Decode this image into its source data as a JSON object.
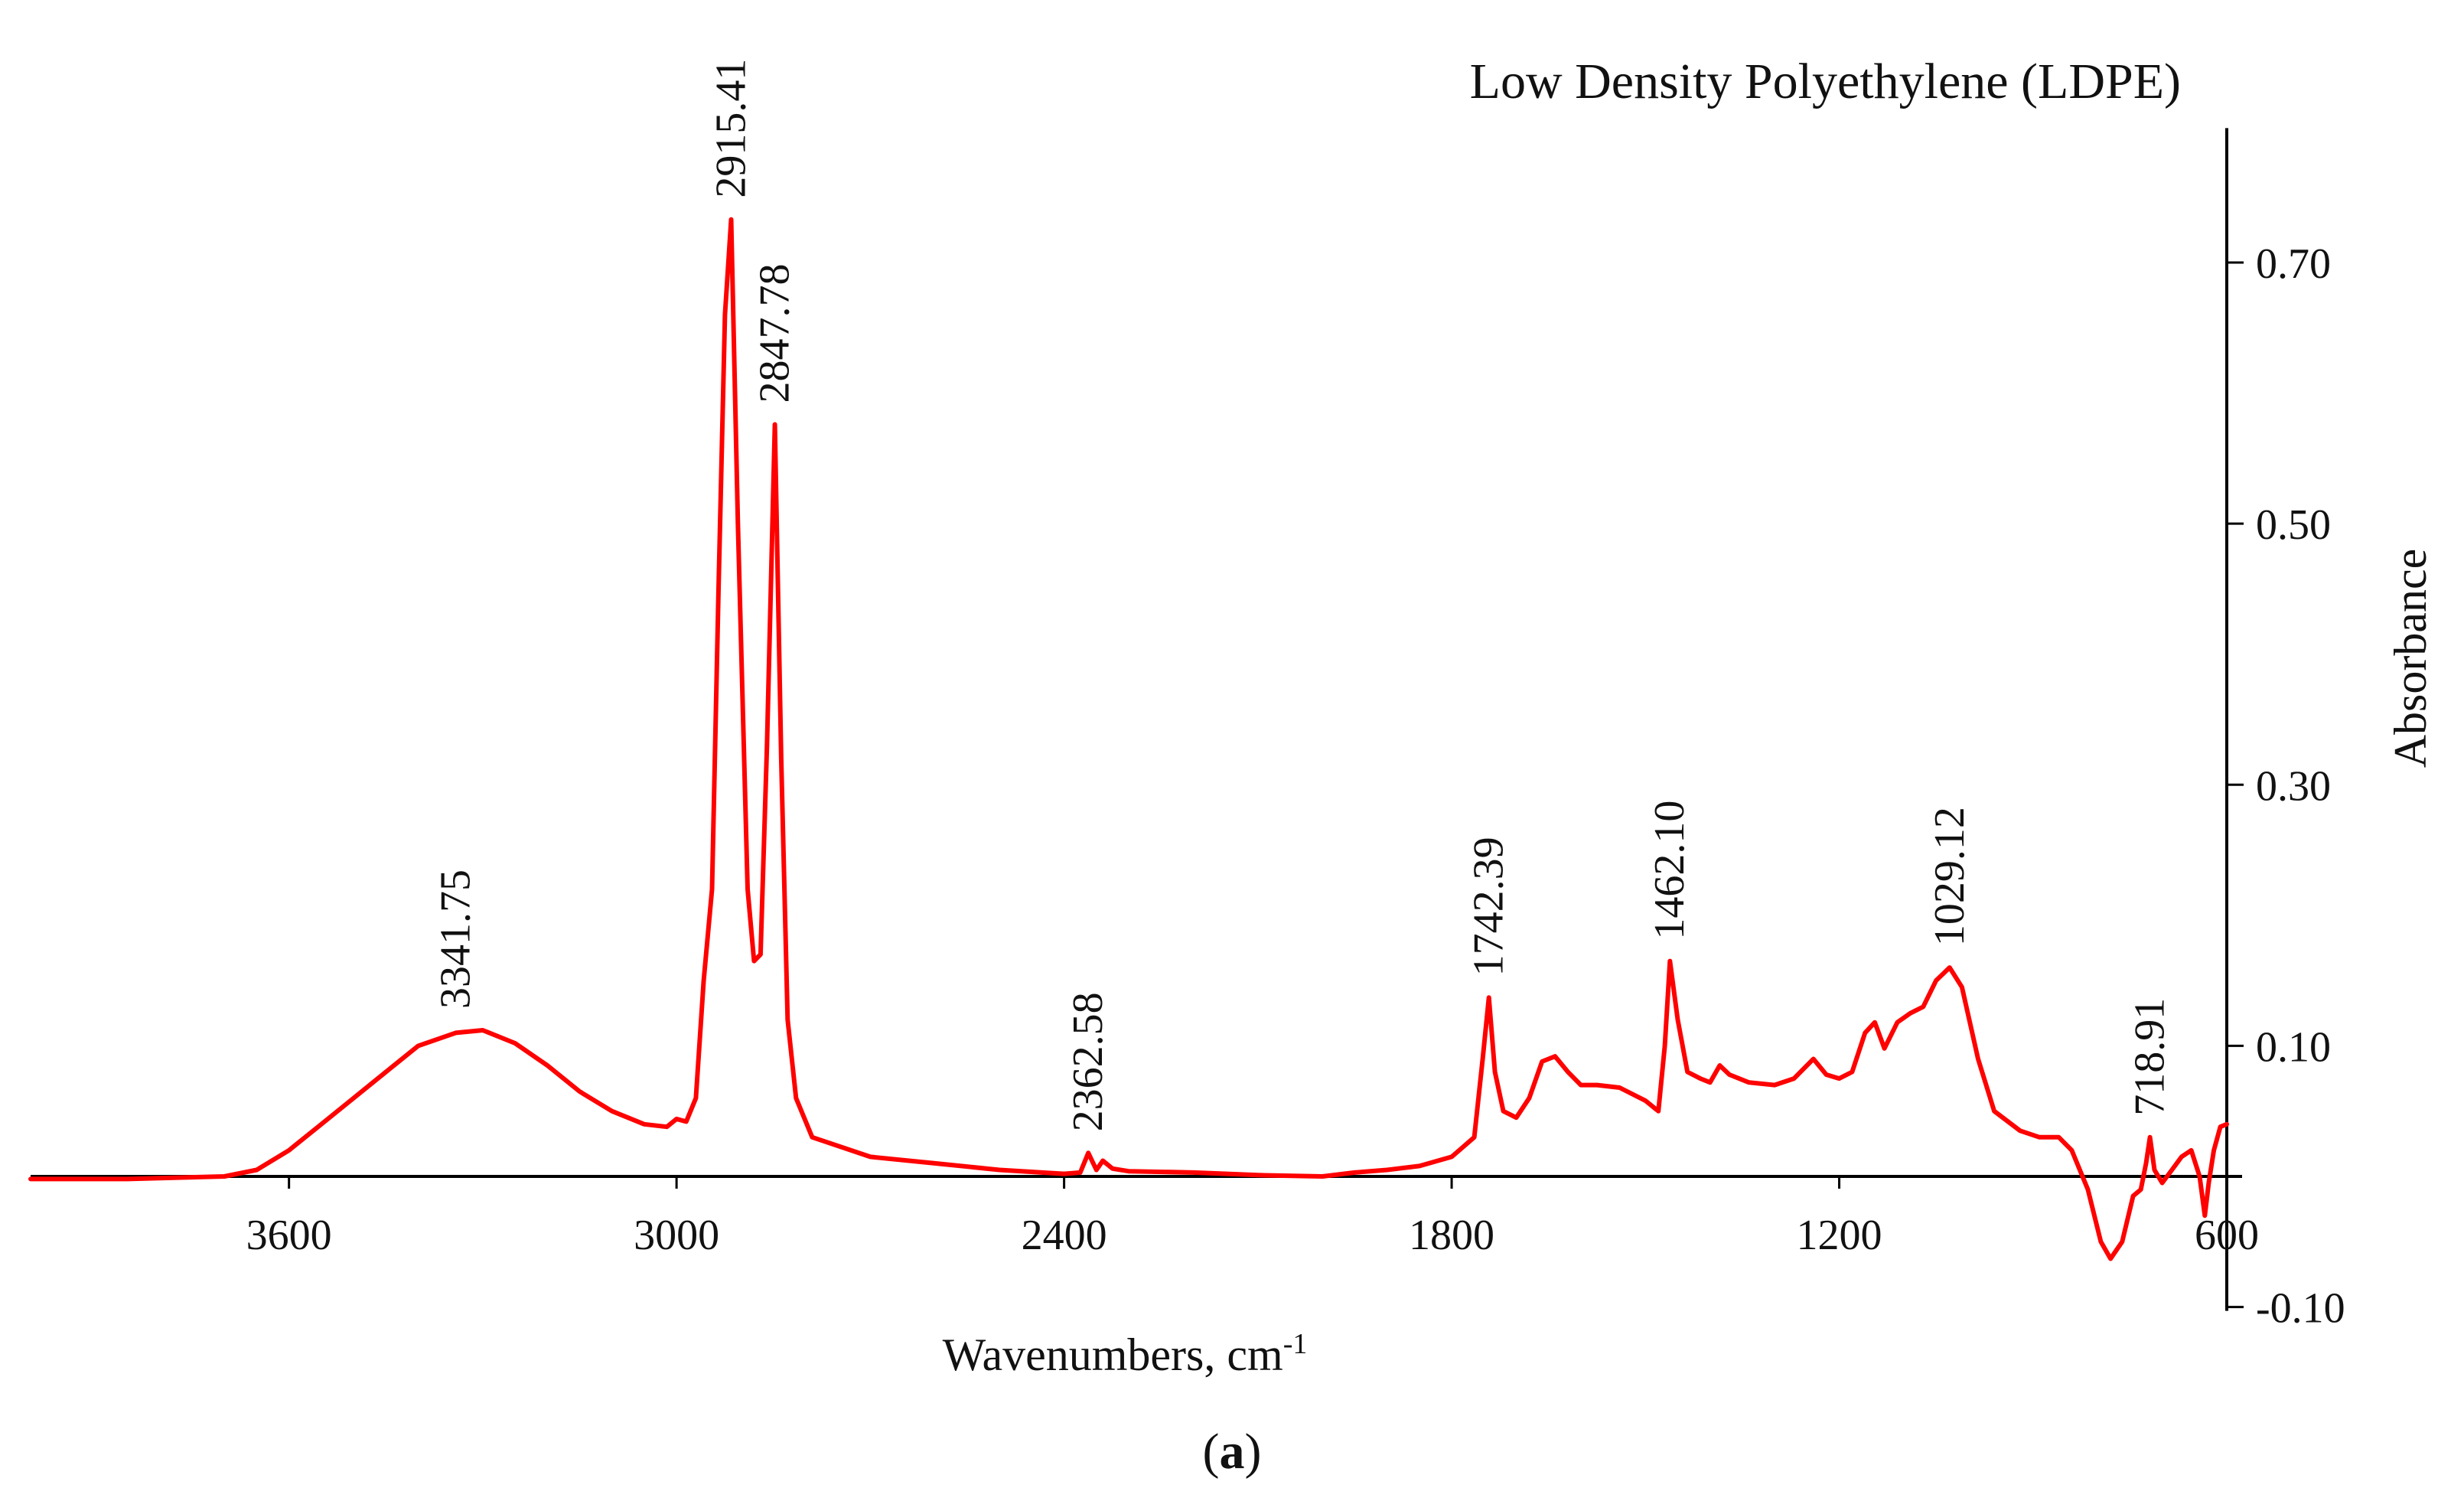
{
  "chart_data": {
    "type": "line",
    "title": "Low Density Polyethylene (LDPE)",
    "xlabel": "Wavenumbers, cm",
    "xlabel_superscript": "-1",
    "ylabel": "Absorbance",
    "caption": "(a)",
    "caption_letter": "a",
    "xlim": [
      4000,
      600
    ],
    "ylim": [
      -0.1,
      0.8
    ],
    "grid": false,
    "x_ticks": [
      3600,
      3000,
      2400,
      1800,
      1200,
      600
    ],
    "x_tick_labels": [
      "3600",
      "3000",
      "2400",
      "1800",
      "1200",
      "600"
    ],
    "y_ticks": [
      0.7,
      0.5,
      0.3,
      0.1,
      -0.1
    ],
    "y_tick_labels": [
      "0.70",
      "0.50",
      "0.30",
      "0.10",
      "-0.10"
    ],
    "series": [
      {
        "name": "LDPE",
        "color": "#ff0000",
        "points": [
          [
            4000,
            -0.002
          ],
          [
            3850,
            -0.002
          ],
          [
            3700,
            0.0
          ],
          [
            3650,
            0.005
          ],
          [
            3600,
            0.02
          ],
          [
            3550,
            0.04
          ],
          [
            3500,
            0.06
          ],
          [
            3450,
            0.08
          ],
          [
            3400,
            0.1
          ],
          [
            3341.75,
            0.11
          ],
          [
            3300,
            0.112
          ],
          [
            3250,
            0.102
          ],
          [
            3200,
            0.085
          ],
          [
            3150,
            0.065
          ],
          [
            3100,
            0.05
          ],
          [
            3050,
            0.04
          ],
          [
            3015,
            0.038
          ],
          [
            3000,
            0.044
          ],
          [
            2985,
            0.042
          ],
          [
            2970,
            0.06
          ],
          [
            2958,
            0.15
          ],
          [
            2945,
            0.22
          ],
          [
            2935,
            0.45
          ],
          [
            2925,
            0.66
          ],
          [
            2915.41,
            0.733
          ],
          [
            2905,
            0.5
          ],
          [
            2890,
            0.22
          ],
          [
            2880,
            0.165
          ],
          [
            2870,
            0.17
          ],
          [
            2860,
            0.33
          ],
          [
            2847.78,
            0.576
          ],
          [
            2838,
            0.32
          ],
          [
            2828,
            0.12
          ],
          [
            2815,
            0.06
          ],
          [
            2790,
            0.03
          ],
          [
            2700,
            0.015
          ],
          [
            2600,
            0.01
          ],
          [
            2500,
            0.005
          ],
          [
            2400,
            0.002
          ],
          [
            2375,
            0.003
          ],
          [
            2362.58,
            0.018
          ],
          [
            2350,
            0.005
          ],
          [
            2340,
            0.012
          ],
          [
            2325,
            0.006
          ],
          [
            2300,
            0.004
          ],
          [
            2200,
            0.003
          ],
          [
            2100,
            0.001
          ],
          [
            2000,
            0.0
          ],
          [
            1950,
            0.003
          ],
          [
            1900,
            0.005
          ],
          [
            1850,
            0.008
          ],
          [
            1800,
            0.015
          ],
          [
            1765,
            0.03
          ],
          [
            1752,
            0.09
          ],
          [
            1742.39,
            0.137
          ],
          [
            1733,
            0.08
          ],
          [
            1720,
            0.05
          ],
          [
            1700,
            0.045
          ],
          [
            1680,
            0.06
          ],
          [
            1660,
            0.088
          ],
          [
            1640,
            0.092
          ],
          [
            1620,
            0.08
          ],
          [
            1600,
            0.07
          ],
          [
            1575,
            0.07
          ],
          [
            1540,
            0.068
          ],
          [
            1500,
            0.058
          ],
          [
            1480,
            0.05
          ],
          [
            1470,
            0.1
          ],
          [
            1462.1,
            0.165
          ],
          [
            1450,
            0.12
          ],
          [
            1435,
            0.08
          ],
          [
            1415,
            0.075
          ],
          [
            1400,
            0.072
          ],
          [
            1385,
            0.085
          ],
          [
            1370,
            0.078
          ],
          [
            1340,
            0.072
          ],
          [
            1300,
            0.07
          ],
          [
            1270,
            0.075
          ],
          [
            1240,
            0.09
          ],
          [
            1220,
            0.078
          ],
          [
            1200,
            0.075
          ],
          [
            1180,
            0.08
          ],
          [
            1160,
            0.11
          ],
          [
            1145,
            0.118
          ],
          [
            1130,
            0.098
          ],
          [
            1110,
            0.118
          ],
          [
            1090,
            0.125
          ],
          [
            1070,
            0.13
          ],
          [
            1050,
            0.15
          ],
          [
            1029.12,
            0.16
          ],
          [
            1010,
            0.145
          ],
          [
            985,
            0.09
          ],
          [
            960,
            0.05
          ],
          [
            920,
            0.035
          ],
          [
            890,
            0.03
          ],
          [
            860,
            0.03
          ],
          [
            840,
            0.02
          ],
          [
            815,
            -0.01
          ],
          [
            795,
            -0.05
          ],
          [
            780,
            -0.063
          ],
          [
            762,
            -0.05
          ],
          [
            745,
            -0.015
          ],
          [
            733,
            -0.01
          ],
          [
            725,
            0.01
          ],
          [
            718.91,
            0.03
          ],
          [
            712,
            0.005
          ],
          [
            700,
            -0.005
          ],
          [
            685,
            0.005
          ],
          [
            670,
            0.015
          ],
          [
            655,
            0.02
          ],
          [
            642,
            0.0
          ],
          [
            634,
            -0.03
          ],
          [
            628,
            -0.005
          ],
          [
            620,
            0.02
          ],
          [
            610,
            0.038
          ],
          [
            600,
            0.04
          ]
        ]
      }
    ],
    "peak_labels": [
      {
        "wavenumber": 3341.75,
        "absorbance": 0.112,
        "label": "3341.75"
      },
      {
        "wavenumber": 2915.41,
        "absorbance": 0.733,
        "label": "2915.41"
      },
      {
        "wavenumber": 2847.78,
        "absorbance": 0.576,
        "label": "2847.78"
      },
      {
        "wavenumber": 2362.58,
        "absorbance": 0.018,
        "label": "2362.58"
      },
      {
        "wavenumber": 1742.39,
        "absorbance": 0.137,
        "label": "1742.39"
      },
      {
        "wavenumber": 1462.1,
        "absorbance": 0.165,
        "label": "1462.10"
      },
      {
        "wavenumber": 1029.12,
        "absorbance": 0.16,
        "label": "1029.12"
      },
      {
        "wavenumber": 718.91,
        "absorbance": 0.03,
        "label": "718.91"
      }
    ]
  }
}
